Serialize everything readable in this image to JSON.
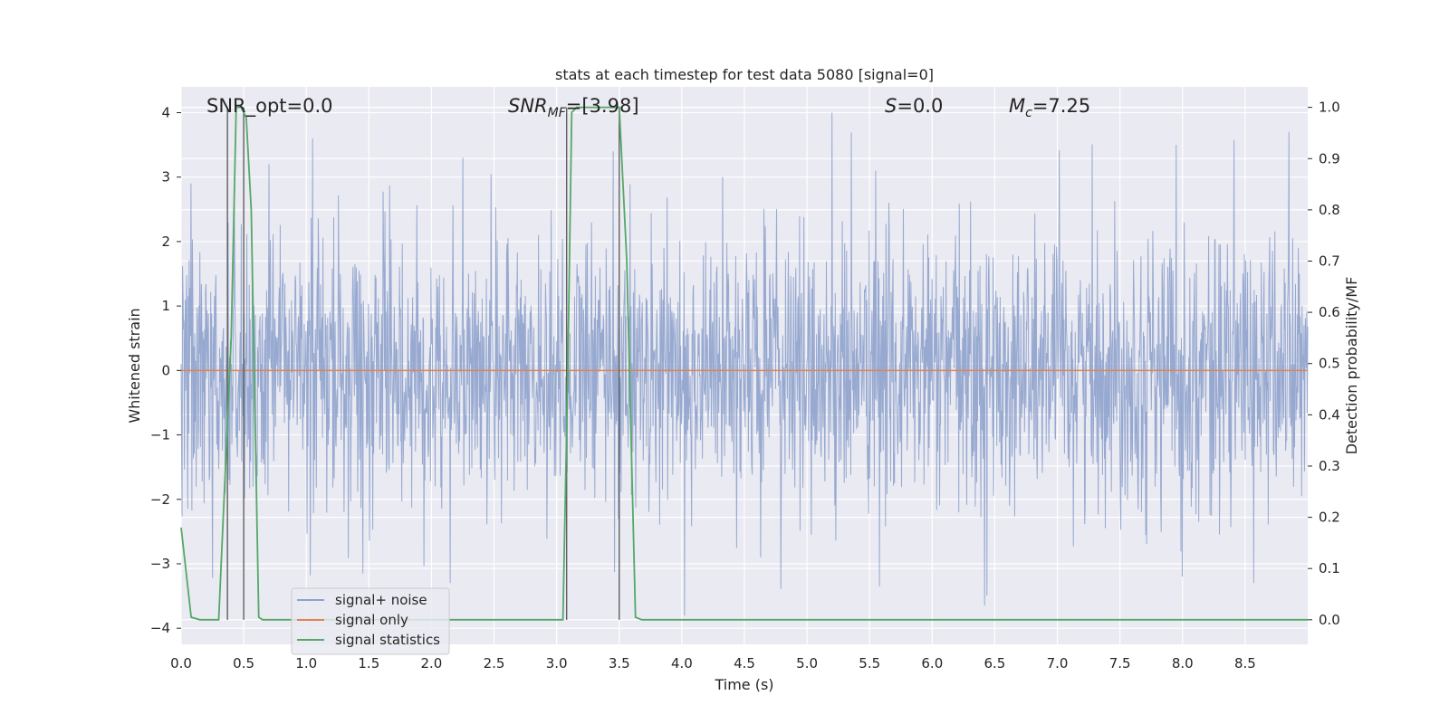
{
  "chart_data": {
    "type": "line",
    "title": "stats at each timestep for test data 5080 [signal=0]",
    "xlabel": "Time (s)",
    "ylabel": "Whitened strain",
    "y2label": "Detection probability/MF",
    "xlim": [
      0.0,
      9.0
    ],
    "ylim": [
      -4.25,
      4.4
    ],
    "y2lim": [
      -0.048,
      1.04
    ],
    "x_ticks": [
      "0.0",
      "0.5",
      "1.0",
      "1.5",
      "2.0",
      "2.5",
      "3.0",
      "3.5",
      "4.0",
      "4.5",
      "5.0",
      "5.5",
      "6.0",
      "6.5",
      "7.0",
      "7.5",
      "8.0",
      "8.5"
    ],
    "y_ticks": [
      "4",
      "3",
      "2",
      "1",
      "0",
      "−1",
      "−2",
      "−3",
      "−4"
    ],
    "y2_ticks": [
      "1.0",
      "0.9",
      "0.8",
      "0.7",
      "0.6",
      "0.5",
      "0.4",
      "0.3",
      "0.2",
      "0.1",
      "0.0"
    ],
    "grid": true,
    "legend_position": "lower-left",
    "annotations": {
      "snr_opt": "SNR_opt=0.0",
      "snr_mf_main": "SNR",
      "snr_mf_sub": "MF",
      "snr_mf_value": "=[3.98]",
      "s_main": "S",
      "s_value": "=0.0",
      "mc_main": "M",
      "mc_sub": "c",
      "mc_value": "=7.25"
    },
    "series": [
      {
        "name": "signal+ noise",
        "color": "#8ea2cc",
        "axis": "left",
        "description_range": [
          -3.6,
          4.0
        ],
        "peaks": [
          {
            "x": 0.08,
            "y": 2.9
          },
          {
            "x": 0.7,
            "y": 3.2
          },
          {
            "x": 1.05,
            "y": 3.6
          },
          {
            "x": 2.25,
            "y": 3.3
          },
          {
            "x": 3.45,
            "y": 3.4
          },
          {
            "x": 5.2,
            "y": 4.0
          },
          {
            "x": 5.55,
            "y": 3.1
          },
          {
            "x": 7.95,
            "y": 3.5
          },
          {
            "x": 8.85,
            "y": 3.7
          },
          {
            "x": 1.45,
            "y": -3.15
          },
          {
            "x": 2.15,
            "y": -3.3
          },
          {
            "x": 4.02,
            "y": -3.8
          },
          {
            "x": 5.58,
            "y": -3.35
          },
          {
            "x": 6.42,
            "y": -3.65
          },
          {
            "x": 8.0,
            "y": -3.2
          }
        ]
      },
      {
        "name": "signal only",
        "color": "#dd8452",
        "axis": "left",
        "x": [
          0.0,
          9.0
        ],
        "y": [
          0.0,
          0.0
        ]
      },
      {
        "name": "signal statistics",
        "color": "#55a868",
        "axis": "right",
        "x": [
          0.0,
          0.08,
          0.15,
          0.3,
          0.4,
          0.44,
          0.48,
          0.52,
          0.56,
          0.62,
          0.65,
          3.05,
          3.09,
          3.12,
          3.16,
          3.2,
          3.35,
          3.5,
          3.56,
          3.63,
          3.68,
          9.0
        ],
        "y": [
          0.18,
          0.005,
          0.0,
          0.0,
          0.55,
          1.0,
          1.0,
          0.98,
          0.8,
          0.005,
          0.0,
          0.0,
          0.5,
          0.99,
          1.0,
          1.0,
          1.0,
          1.0,
          0.7,
          0.005,
          0.0,
          0.0
        ]
      }
    ],
    "vertical_markers_x": [
      0.37,
      0.5,
      3.08,
      3.5
    ]
  }
}
